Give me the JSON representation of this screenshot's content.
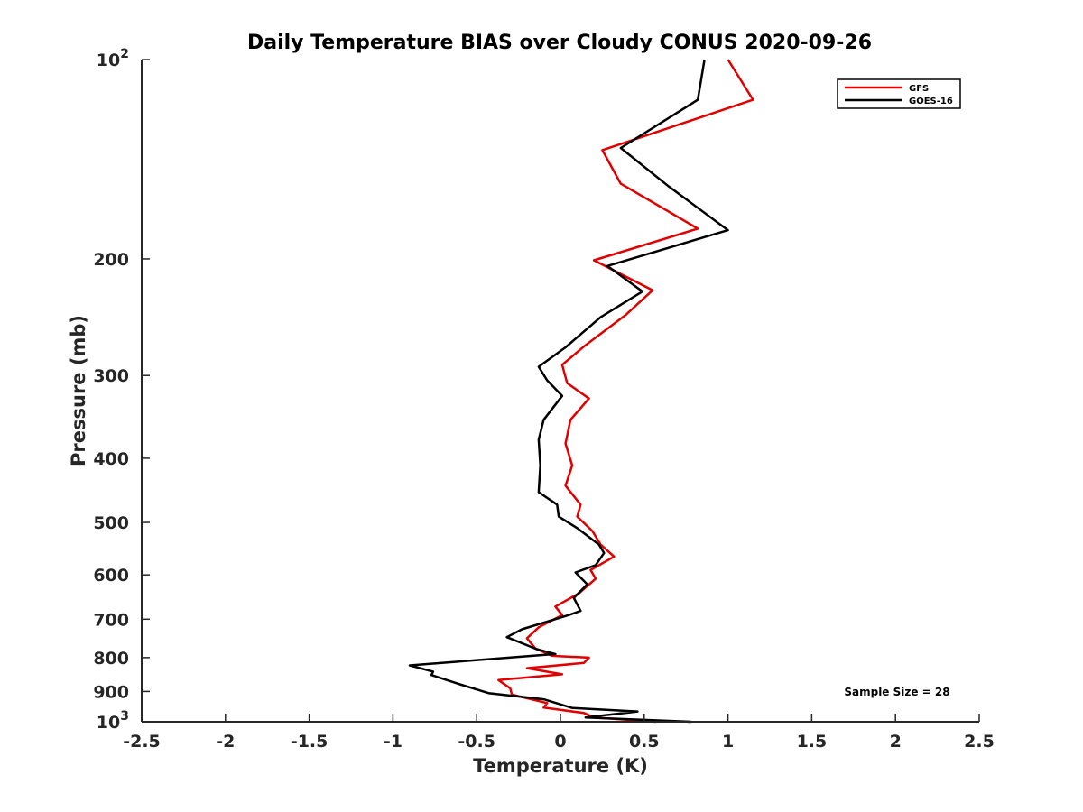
{
  "chart_data": {
    "type": "line",
    "title": "Daily Temperature BIAS over Cloudy CONUS 2020-09-26",
    "xlabel": "Temperature (K)",
    "ylabel": "Pressure (mb)",
    "xlim": [
      -2.5,
      2.5
    ],
    "ylim": [
      100,
      1000
    ],
    "y_scale": "log",
    "y_reversed": true,
    "grid": false,
    "legend_position": "top-right",
    "x_ticks": [
      {
        "value": -2.5,
        "label": "-2.5"
      },
      {
        "value": -2,
        "label": "-2"
      },
      {
        "value": -1.5,
        "label": "-1.5"
      },
      {
        "value": -1,
        "label": "-1"
      },
      {
        "value": -0.5,
        "label": "-0.5"
      },
      {
        "value": 0,
        "label": "0"
      },
      {
        "value": 0.5,
        "label": "0.5"
      },
      {
        "value": 1,
        "label": "1"
      },
      {
        "value": 1.5,
        "label": "1.5"
      },
      {
        "value": 2,
        "label": "2"
      },
      {
        "value": 2.5,
        "label": "2.5"
      }
    ],
    "y_ticks": [
      {
        "value": 100,
        "base": "10",
        "exp": "2"
      },
      {
        "value": 200,
        "label": "200"
      },
      {
        "value": 300,
        "label": "300"
      },
      {
        "value": 400,
        "label": "400"
      },
      {
        "value": 500,
        "label": "500"
      },
      {
        "value": 600,
        "label": "600"
      },
      {
        "value": 700,
        "label": "700"
      },
      {
        "value": 800,
        "label": "800"
      },
      {
        "value": 900,
        "label": "900"
      },
      {
        "value": 1000,
        "base": "10",
        "exp": "3"
      }
    ],
    "annotation": "Sample Size = 28",
    "series": [
      {
        "name": "GFS",
        "color": "#e00000",
        "points": [
          [
            1.0,
            100
          ],
          [
            1.15,
            115
          ],
          [
            0.25,
            137
          ],
          [
            0.36,
            154
          ],
          [
            0.82,
            180
          ],
          [
            0.2,
            201
          ],
          [
            0.55,
            223
          ],
          [
            0.39,
            243
          ],
          [
            0.15,
            270
          ],
          [
            0.01,
            289
          ],
          [
            0.04,
            308
          ],
          [
            0.17,
            325
          ],
          [
            0.06,
            350
          ],
          [
            0.03,
            380
          ],
          [
            0.07,
            410
          ],
          [
            0.03,
            440
          ],
          [
            0.12,
            470
          ],
          [
            0.1,
            490
          ],
          [
            0.19,
            515
          ],
          [
            0.24,
            540
          ],
          [
            0.32,
            563
          ],
          [
            0.18,
            590
          ],
          [
            0.21,
            608
          ],
          [
            0.11,
            640
          ],
          [
            -0.03,
            670
          ],
          [
            0.01,
            690
          ],
          [
            -0.13,
            720
          ],
          [
            -0.2,
            748
          ],
          [
            -0.15,
            775
          ],
          [
            -0.05,
            795
          ],
          [
            0.17,
            800
          ],
          [
            0.14,
            815
          ],
          [
            -0.2,
            830
          ],
          [
            0.01,
            848
          ],
          [
            -0.37,
            865
          ],
          [
            -0.3,
            890
          ],
          [
            -0.29,
            910
          ],
          [
            -0.08,
            937
          ],
          [
            -0.1,
            952
          ],
          [
            0.14,
            970
          ],
          [
            0.2,
            985
          ],
          [
            0.57,
            1000
          ]
        ]
      },
      {
        "name": "GOES-16",
        "color": "#000000",
        "points": [
          [
            0.86,
            100
          ],
          [
            0.82,
            115
          ],
          [
            0.36,
            136
          ],
          [
            0.64,
            155
          ],
          [
            1.0,
            181
          ],
          [
            0.28,
            205
          ],
          [
            0.49,
            224
          ],
          [
            0.24,
            245
          ],
          [
            0.03,
            272
          ],
          [
            -0.13,
            291
          ],
          [
            -0.08,
            305
          ],
          [
            0.01,
            322
          ],
          [
            -0.1,
            350
          ],
          [
            -0.13,
            375
          ],
          [
            -0.12,
            410
          ],
          [
            -0.13,
            450
          ],
          [
            -0.02,
            470
          ],
          [
            -0.01,
            490
          ],
          [
            0.1,
            510
          ],
          [
            0.23,
            540
          ],
          [
            0.26,
            556
          ],
          [
            0.21,
            580
          ],
          [
            0.09,
            595
          ],
          [
            0.16,
            620
          ],
          [
            0.08,
            650
          ],
          [
            0.12,
            680
          ],
          [
            0.05,
            690
          ],
          [
            -0.23,
            725
          ],
          [
            -0.32,
            745
          ],
          [
            -0.14,
            777
          ],
          [
            -0.03,
            790
          ],
          [
            -0.9,
            822
          ],
          [
            -0.76,
            840
          ],
          [
            -0.77,
            850
          ],
          [
            -0.6,
            878
          ],
          [
            -0.43,
            905
          ],
          [
            -0.1,
            925
          ],
          [
            0.07,
            953
          ],
          [
            0.46,
            965
          ],
          [
            0.15,
            985
          ],
          [
            0.78,
            1000
          ]
        ]
      }
    ]
  }
}
